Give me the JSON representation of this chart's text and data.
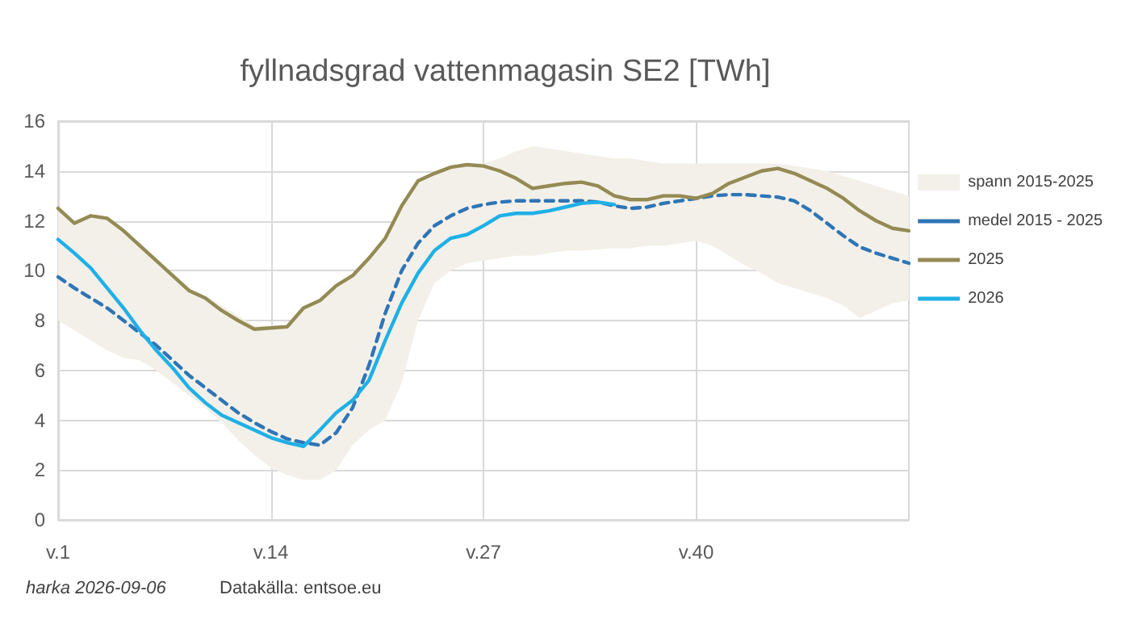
{
  "chart_data": {
    "type": "line",
    "title": "fyllnadsgrad vattenmagasin SE2 [TWh]",
    "categories": [
      "v.1",
      null,
      null,
      null,
      null,
      null,
      null,
      null,
      null,
      null,
      null,
      null,
      null,
      "v.14",
      null,
      null,
      null,
      null,
      null,
      null,
      null,
      null,
      null,
      null,
      null,
      null,
      "v.27",
      null,
      null,
      null,
      null,
      null,
      null,
      null,
      null,
      null,
      null,
      null,
      null,
      "v.40",
      null,
      null,
      null,
      null,
      null,
      null,
      null,
      null,
      null,
      null,
      null,
      null,
      null
    ],
    "ylim": [
      0,
      16
    ],
    "yticks": [
      0,
      2,
      4,
      6,
      8,
      10,
      12,
      14,
      16
    ],
    "grid": true,
    "legend": "right",
    "marker": "none",
    "line_style": "solid",
    "annotations": [
      "harka 2026-09-06",
      "Datakälla: entsoe.eu"
    ],
    "series": [
      {
        "name": "spann 2015-2025",
        "type": "area",
        "color": "#f3f0e9",
        "values": [
          null,
          null,
          null,
          null,
          null,
          null,
          null,
          null,
          null,
          null,
          null,
          null,
          null,
          null,
          null,
          null,
          null,
          null,
          null,
          null,
          null,
          null,
          null,
          null,
          null,
          null,
          null,
          null,
          null,
          null,
          null,
          null,
          null,
          null,
          null,
          null,
          null,
          null,
          null,
          null,
          null,
          null,
          null,
          null,
          null,
          null,
          null,
          null,
          null,
          null,
          null,
          null,
          null
        ],
        "lower": [
          8.0,
          7.6,
          7.2,
          6.8,
          6.5,
          6.4,
          6.0,
          5.5,
          5.0,
          4.5,
          3.9,
          3.2,
          2.6,
          2.1,
          1.8,
          1.6,
          1.6,
          2.0,
          3.0,
          3.6,
          4.0,
          5.5,
          8.0,
          9.5,
          10.0,
          10.3,
          10.4,
          10.5,
          10.6,
          10.6,
          10.7,
          10.8,
          10.8,
          10.85,
          10.9,
          10.9,
          11.0,
          11.0,
          11.1,
          11.2,
          11.0,
          10.6,
          10.2,
          9.9,
          9.5,
          9.3,
          9.1,
          8.9,
          8.6,
          8.1,
          8.4,
          8.7,
          8.8
        ],
        "upper": [
          12.5,
          12.0,
          12.2,
          12.1,
          11.6,
          11.0,
          10.4,
          9.8,
          9.3,
          9.0,
          8.6,
          8.2,
          7.8,
          7.8,
          7.8,
          8.5,
          8.8,
          9.4,
          9.8,
          10.5,
          11.4,
          12.6,
          13.6,
          13.9,
          14.15,
          14.3,
          14.3,
          14.5,
          14.8,
          15.0,
          14.9,
          14.8,
          14.7,
          14.6,
          14.5,
          14.5,
          14.4,
          14.3,
          14.3,
          14.3,
          14.3,
          14.3,
          14.3,
          14.3,
          14.3,
          14.2,
          14.1,
          14.0,
          13.8,
          13.6,
          13.4,
          13.2,
          13.0
        ]
      },
      {
        "name": "medel 2015 - 2025",
        "line_style": "dashed",
        "color": "#2e75b6",
        "values": [
          9.75,
          9.3,
          8.9,
          8.5,
          8.0,
          7.5,
          7.0,
          6.4,
          5.8,
          5.3,
          4.8,
          4.3,
          3.9,
          3.55,
          3.25,
          3.1,
          3.0,
          3.5,
          4.5,
          6.2,
          8.3,
          10.0,
          11.1,
          11.8,
          12.2,
          12.5,
          12.65,
          12.75,
          12.8,
          12.8,
          12.8,
          12.8,
          12.8,
          12.75,
          12.6,
          12.5,
          12.55,
          12.7,
          12.8,
          12.9,
          13.0,
          13.05,
          13.05,
          13.0,
          12.95,
          12.8,
          12.4,
          11.9,
          11.4,
          10.95,
          10.7,
          10.5,
          10.3
        ]
      },
      {
        "name": "2025",
        "color": "#948a54",
        "values": [
          12.5,
          11.9,
          12.2,
          12.1,
          11.6,
          11.0,
          10.4,
          9.8,
          9.2,
          8.9,
          8.4,
          8.0,
          7.65,
          7.7,
          7.75,
          8.5,
          8.8,
          9.4,
          9.8,
          10.5,
          11.3,
          12.6,
          13.6,
          13.9,
          14.15,
          14.25,
          14.2,
          14.0,
          13.7,
          13.3,
          13.4,
          13.5,
          13.55,
          13.4,
          13.0,
          12.85,
          12.85,
          13.0,
          13.0,
          12.9,
          13.1,
          13.5,
          13.75,
          14.0,
          14.1,
          13.9,
          13.6,
          13.3,
          12.9,
          12.4,
          12.0,
          11.7,
          11.6
        ]
      },
      {
        "name": "2026",
        "color": "#1fb0e6",
        "values": [
          11.25,
          10.7,
          10.1,
          9.3,
          8.5,
          7.6,
          6.8,
          6.1,
          5.3,
          4.7,
          4.2,
          3.9,
          3.6,
          3.3,
          3.1,
          2.95,
          3.6,
          4.3,
          4.8,
          5.6,
          7.2,
          8.7,
          9.9,
          10.8,
          11.3,
          11.45,
          11.8,
          12.2,
          12.3,
          12.3,
          12.4,
          12.55,
          12.7,
          12.75,
          12.65,
          null,
          null,
          null,
          null,
          null,
          null,
          null,
          null,
          null,
          null,
          null,
          null,
          null,
          null,
          null,
          null,
          null,
          null
        ]
      }
    ]
  }
}
